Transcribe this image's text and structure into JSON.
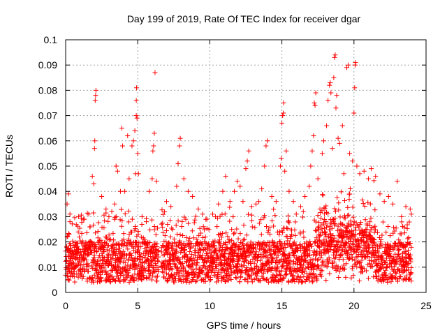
{
  "chart_data": {
    "type": "scatter",
    "title": "Day 199 of 2019, Rate Of TEC Index for receiver dgar",
    "xlabel": "GPS time / hours",
    "ylabel": "ROTI / TECUs",
    "xlim": [
      0,
      25
    ],
    "ylim": [
      0,
      0.1
    ],
    "xticks": [
      "0",
      "5",
      "10",
      "15",
      "20",
      "25"
    ],
    "yticks": [
      "0",
      "0.01",
      "0.02",
      "0.03",
      "0.04",
      "0.05",
      "0.06",
      "0.07",
      "0.08",
      "0.09",
      "0.1"
    ],
    "grid": true,
    "marker": "+",
    "color": "#ff0000",
    "series": [
      {
        "points": [
          [
            0.1,
            0.035
          ],
          [
            0.2,
            0.039
          ],
          [
            0.3,
            0.028
          ],
          [
            0.1,
            0.022
          ],
          [
            0.3,
            0.031
          ],
          [
            0.9,
            0.03
          ],
          [
            1.3,
            0.029
          ],
          [
            1.6,
            0.031
          ],
          [
            1.7,
            0.026
          ],
          [
            1.85,
            0.046
          ],
          [
            1.95,
            0.043
          ],
          [
            2.0,
            0.057
          ],
          [
            2.02,
            0.06
          ],
          [
            2.05,
            0.076
          ],
          [
            2.08,
            0.078
          ],
          [
            2.1,
            0.08
          ],
          [
            2.5,
            0.038
          ],
          [
            2.8,
            0.033
          ],
          [
            3.0,
            0.03
          ],
          [
            3.2,
            0.032
          ],
          [
            3.4,
            0.035
          ],
          [
            3.5,
            0.05
          ],
          [
            3.6,
            0.048
          ],
          [
            3.8,
            0.04
          ],
          [
            3.9,
            0.065
          ],
          [
            3.95,
            0.058
          ],
          [
            4.1,
            0.04
          ],
          [
            4.3,
            0.062
          ],
          [
            4.4,
            0.045
          ],
          [
            4.6,
            0.058
          ],
          [
            4.7,
            0.06
          ],
          [
            4.8,
            0.064
          ],
          [
            4.85,
            0.047
          ],
          [
            4.9,
            0.07
          ],
          [
            4.9,
            0.076
          ],
          [
            4.92,
            0.081
          ],
          [
            4.95,
            0.069
          ],
          [
            5.0,
            0.055
          ],
          [
            5.05,
            0.047
          ],
          [
            5.3,
            0.03
          ],
          [
            5.6,
            0.028
          ],
          [
            5.8,
            0.04
          ],
          [
            6.0,
            0.045
          ],
          [
            6.05,
            0.056
          ],
          [
            6.1,
            0.058
          ],
          [
            6.15,
            0.063
          ],
          [
            6.2,
            0.087
          ],
          [
            6.3,
            0.044
          ],
          [
            7.0,
            0.036
          ],
          [
            7.3,
            0.034
          ],
          [
            7.7,
            0.042
          ],
          [
            7.8,
            0.051
          ],
          [
            7.9,
            0.058
          ],
          [
            7.95,
            0.061
          ],
          [
            8.2,
            0.045
          ],
          [
            8.5,
            0.04
          ],
          [
            8.8,
            0.038
          ],
          [
            9.2,
            0.033
          ],
          [
            9.5,
            0.031
          ],
          [
            9.8,
            0.029
          ],
          [
            10.2,
            0.031
          ],
          [
            10.6,
            0.035
          ],
          [
            10.9,
            0.04
          ],
          [
            11.1,
            0.046
          ],
          [
            11.4,
            0.036
          ],
          [
            11.7,
            0.04
          ],
          [
            11.9,
            0.044
          ],
          [
            12.1,
            0.042
          ],
          [
            12.3,
            0.036
          ],
          [
            12.5,
            0.049
          ],
          [
            12.6,
            0.052
          ],
          [
            12.7,
            0.056
          ],
          [
            12.9,
            0.034
          ],
          [
            13.2,
            0.035
          ],
          [
            13.4,
            0.036
          ],
          [
            13.6,
            0.041
          ],
          [
            13.8,
            0.05
          ],
          [
            13.9,
            0.058
          ],
          [
            14.0,
            0.06
          ],
          [
            14.3,
            0.038
          ],
          [
            14.6,
            0.036
          ],
          [
            14.9,
            0.05
          ],
          [
            14.95,
            0.053
          ],
          [
            15.0,
            0.067
          ],
          [
            15.05,
            0.07
          ],
          [
            15.1,
            0.071
          ],
          [
            15.12,
            0.075
          ],
          [
            15.2,
            0.048
          ],
          [
            15.3,
            0.056
          ],
          [
            15.5,
            0.04
          ],
          [
            15.8,
            0.036
          ],
          [
            16.0,
            0.031
          ],
          [
            16.3,
            0.034
          ],
          [
            16.6,
            0.038
          ],
          [
            16.9,
            0.042
          ],
          [
            17.0,
            0.05
          ],
          [
            17.1,
            0.056
          ],
          [
            17.2,
            0.062
          ],
          [
            17.25,
            0.075
          ],
          [
            17.3,
            0.074
          ],
          [
            17.35,
            0.079
          ],
          [
            17.5,
            0.045
          ],
          [
            17.8,
            0.055
          ],
          [
            17.9,
            0.06
          ],
          [
            18.1,
            0.066
          ],
          [
            18.2,
            0.076
          ],
          [
            18.3,
            0.082
          ],
          [
            18.35,
            0.083
          ],
          [
            18.4,
            0.079
          ],
          [
            18.5,
            0.057
          ],
          [
            18.6,
            0.085
          ],
          [
            18.65,
            0.093
          ],
          [
            18.7,
            0.094
          ],
          [
            18.75,
            0.073
          ],
          [
            18.8,
            0.078
          ],
          [
            18.9,
            0.061
          ],
          [
            19.0,
            0.059
          ],
          [
            19.2,
            0.066
          ],
          [
            19.3,
            0.047
          ],
          [
            19.5,
            0.089
          ],
          [
            19.6,
            0.09
          ],
          [
            19.7,
            0.055
          ],
          [
            19.9,
            0.052
          ],
          [
            20.0,
            0.071
          ],
          [
            20.05,
            0.081
          ],
          [
            20.08,
            0.09
          ],
          [
            20.1,
            0.091
          ],
          [
            20.2,
            0.05
          ],
          [
            20.4,
            0.047
          ],
          [
            20.7,
            0.048
          ],
          [
            21.0,
            0.045
          ],
          [
            21.2,
            0.049
          ],
          [
            21.5,
            0.046
          ],
          [
            21.8,
            0.039
          ],
          [
            22.1,
            0.036
          ],
          [
            22.4,
            0.038
          ],
          [
            22.7,
            0.035
          ],
          [
            23.0,
            0.044
          ],
          [
            23.3,
            0.03
          ],
          [
            23.6,
            0.034
          ],
          [
            23.9,
            0.033
          ]
        ]
      }
    ]
  }
}
